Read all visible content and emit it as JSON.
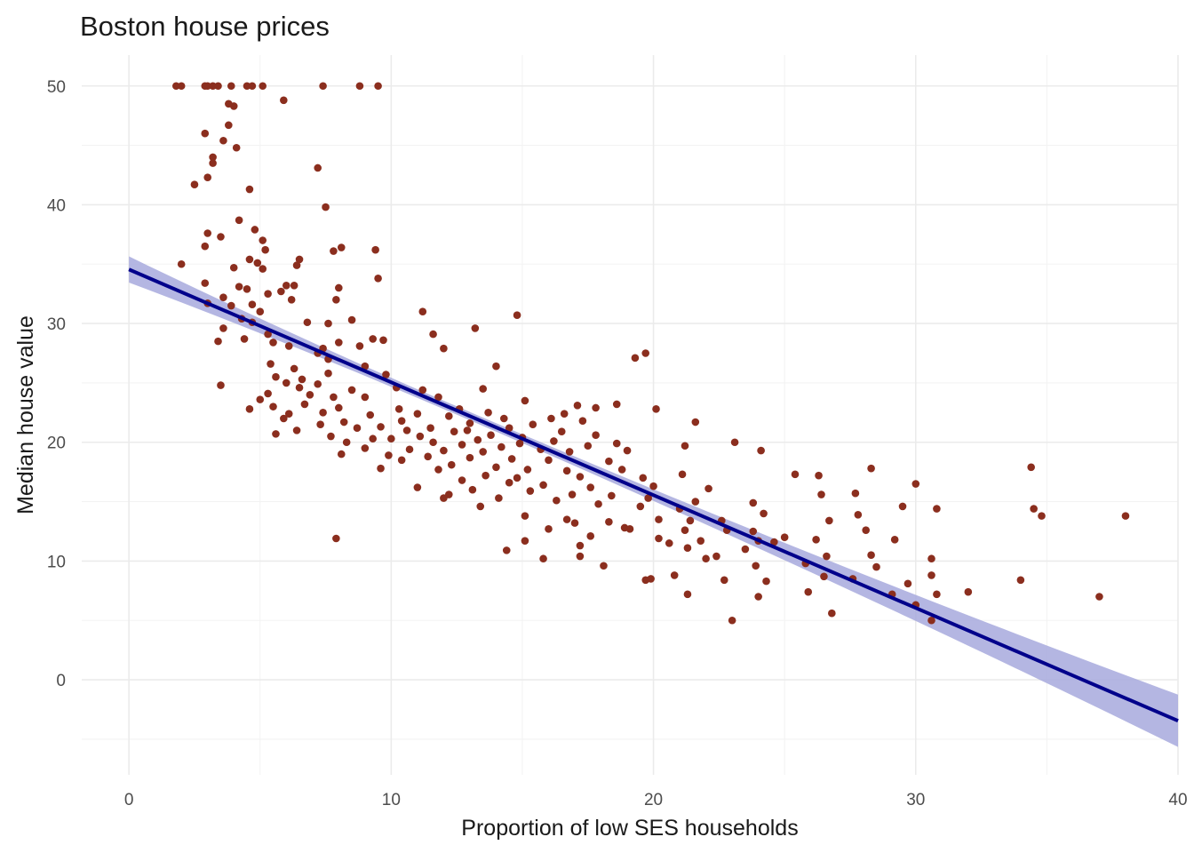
{
  "chart_data": {
    "type": "scatter",
    "title": "Boston house prices",
    "xlabel": "Proportion of low SES households",
    "ylabel": "Median house value",
    "xlim": [
      -1.8,
      40.0
    ],
    "ylim": [
      -8.0,
      52.6
    ],
    "x_ticks": [
      0,
      10,
      20,
      30,
      40
    ],
    "y_ticks": [
      0,
      10,
      20,
      30,
      40,
      50
    ],
    "grid": true,
    "legend": "none",
    "colors": {
      "points": "#8b2e1e",
      "fit_line": "#00008b",
      "ci_band": "#a7a9dd"
    },
    "fit": {
      "method": "linear",
      "intercept": 34.55,
      "slope": -0.95,
      "x_range": [
        0.0,
        40.0
      ],
      "ci_halfwidth_ends": 1.1,
      "ci_halfwidth_mid": 0.35
    },
    "points": [
      [
        1.8,
        50
      ],
      [
        2.0,
        50
      ],
      [
        2.9,
        50
      ],
      [
        3.0,
        50
      ],
      [
        3.2,
        50
      ],
      [
        3.4,
        50
      ],
      [
        3.9,
        50
      ],
      [
        4.5,
        50
      ],
      [
        4.7,
        50
      ],
      [
        5.1,
        50
      ],
      [
        7.4,
        50
      ],
      [
        8.8,
        50
      ],
      [
        9.5,
        50
      ],
      [
        5.9,
        48.8
      ],
      [
        4.0,
        48.3
      ],
      [
        3.8,
        48.5
      ],
      [
        3.8,
        46.7
      ],
      [
        2.9,
        46.0
      ],
      [
        3.6,
        45.4
      ],
      [
        4.1,
        44.8
      ],
      [
        3.2,
        44.0
      ],
      [
        3.2,
        43.5
      ],
      [
        7.2,
        43.1
      ],
      [
        3.0,
        42.3
      ],
      [
        2.5,
        41.7
      ],
      [
        4.6,
        41.3
      ],
      [
        7.5,
        39.8
      ],
      [
        4.2,
        38.7
      ],
      [
        4.8,
        37.9
      ],
      [
        3.0,
        37.6
      ],
      [
        3.5,
        37.3
      ],
      [
        5.1,
        37.0
      ],
      [
        2.9,
        36.5
      ],
      [
        8.1,
        36.4
      ],
      [
        7.8,
        36.1
      ],
      [
        9.4,
        36.2
      ],
      [
        5.2,
        36.2
      ],
      [
        6.5,
        35.4
      ],
      [
        4.6,
        35.4
      ],
      [
        4.9,
        35.1
      ],
      [
        2.0,
        35.0
      ],
      [
        6.4,
        34.9
      ],
      [
        4.0,
        34.7
      ],
      [
        5.1,
        34.6
      ],
      [
        9.5,
        33.8
      ],
      [
        2.9,
        33.4
      ],
      [
        4.2,
        33.1
      ],
      [
        6.0,
        33.2
      ],
      [
        6.3,
        33.2
      ],
      [
        8.0,
        33.0
      ],
      [
        4.5,
        32.9
      ],
      [
        5.8,
        32.7
      ],
      [
        5.3,
        32.5
      ],
      [
        3.6,
        32.2
      ],
      [
        6.2,
        32.0
      ],
      [
        7.9,
        32.0
      ],
      [
        3.0,
        31.7
      ],
      [
        4.7,
        31.6
      ],
      [
        5.0,
        31.0
      ],
      [
        3.9,
        31.5
      ],
      [
        11.2,
        31.0
      ],
      [
        14.8,
        30.7
      ],
      [
        4.3,
        30.4
      ],
      [
        8.5,
        30.3
      ],
      [
        4.7,
        30.1
      ],
      [
        6.8,
        30.1
      ],
      [
        7.6,
        30.0
      ],
      [
        13.2,
        29.6
      ],
      [
        3.6,
        29.6
      ],
      [
        5.3,
        29.1
      ],
      [
        9.3,
        28.7
      ],
      [
        4.4,
        28.7
      ],
      [
        5.5,
        28.4
      ],
      [
        3.4,
        28.5
      ],
      [
        9.7,
        28.6
      ],
      [
        8.0,
        28.4
      ],
      [
        6.1,
        28.1
      ],
      [
        7.4,
        27.9
      ],
      [
        8.8,
        28.1
      ],
      [
        12.0,
        27.9
      ],
      [
        11.6,
        29.1
      ],
      [
        7.2,
        27.5
      ],
      [
        19.7,
        27.5
      ],
      [
        19.3,
        27.1
      ],
      [
        7.6,
        27.0
      ],
      [
        5.4,
        26.6
      ],
      [
        9.0,
        26.4
      ],
      [
        14.0,
        26.4
      ],
      [
        6.3,
        26.2
      ],
      [
        7.6,
        25.8
      ],
      [
        5.6,
        25.5
      ],
      [
        9.8,
        25.7
      ],
      [
        6.6,
        25.3
      ],
      [
        6.0,
        25.0
      ],
      [
        7.2,
        24.9
      ],
      [
        6.5,
        24.6
      ],
      [
        3.5,
        24.8
      ],
      [
        10.2,
        24.6
      ],
      [
        8.5,
        24.4
      ],
      [
        11.2,
        24.4
      ],
      [
        13.5,
        24.5
      ],
      [
        5.3,
        24.1
      ],
      [
        6.9,
        24.0
      ],
      [
        7.8,
        23.8
      ],
      [
        5.0,
        23.6
      ],
      [
        9.0,
        23.8
      ],
      [
        11.8,
        23.8
      ],
      [
        15.1,
        23.5
      ],
      [
        17.1,
        23.1
      ],
      [
        17.8,
        22.9
      ],
      [
        18.6,
        23.2
      ],
      [
        20.1,
        22.8
      ],
      [
        21.6,
        21.7
      ],
      [
        5.5,
        23.0
      ],
      [
        6.7,
        23.2
      ],
      [
        8.0,
        22.9
      ],
      [
        10.3,
        22.8
      ],
      [
        12.6,
        22.8
      ],
      [
        13.7,
        22.5
      ],
      [
        16.6,
        22.4
      ],
      [
        4.6,
        22.8
      ],
      [
        6.1,
        22.4
      ],
      [
        7.4,
        22.5
      ],
      [
        9.2,
        22.3
      ],
      [
        11.0,
        22.4
      ],
      [
        12.2,
        22.2
      ],
      [
        14.3,
        22.0
      ],
      [
        16.1,
        22.0
      ],
      [
        5.9,
        22.0
      ],
      [
        8.2,
        21.7
      ],
      [
        10.4,
        21.8
      ],
      [
        13.0,
        21.6
      ],
      [
        15.4,
        21.5
      ],
      [
        17.3,
        21.8
      ],
      [
        7.3,
        21.5
      ],
      [
        9.6,
        21.3
      ],
      [
        11.5,
        21.2
      ],
      [
        12.9,
        21.0
      ],
      [
        14.5,
        21.2
      ],
      [
        16.5,
        20.9
      ],
      [
        6.4,
        21.0
      ],
      [
        8.7,
        21.2
      ],
      [
        10.6,
        21.0
      ],
      [
        12.4,
        20.9
      ],
      [
        13.8,
        20.6
      ],
      [
        15.0,
        20.4
      ],
      [
        17.8,
        20.6
      ],
      [
        7.7,
        20.5
      ],
      [
        9.3,
        20.3
      ],
      [
        11.1,
        20.5
      ],
      [
        13.3,
        20.2
      ],
      [
        14.9,
        19.9
      ],
      [
        16.2,
        20.1
      ],
      [
        18.6,
        19.9
      ],
      [
        5.6,
        20.7
      ],
      [
        8.3,
        20.0
      ],
      [
        10.0,
        20.3
      ],
      [
        11.6,
        20.0
      ],
      [
        12.7,
        19.8
      ],
      [
        14.2,
        19.6
      ],
      [
        15.7,
        19.4
      ],
      [
        17.5,
        19.7
      ],
      [
        9.0,
        19.5
      ],
      [
        10.7,
        19.4
      ],
      [
        12.0,
        19.3
      ],
      [
        13.5,
        19.2
      ],
      [
        16.8,
        19.2
      ],
      [
        19.0,
        19.3
      ],
      [
        21.2,
        19.7
      ],
      [
        24.1,
        19.3
      ],
      [
        23.1,
        20.0
      ],
      [
        8.1,
        19.0
      ],
      [
        9.9,
        18.9
      ],
      [
        11.4,
        18.8
      ],
      [
        13.0,
        18.7
      ],
      [
        14.6,
        18.6
      ],
      [
        16.0,
        18.5
      ],
      [
        18.3,
        18.4
      ],
      [
        10.4,
        18.5
      ],
      [
        12.3,
        18.1
      ],
      [
        14.0,
        17.9
      ],
      [
        15.2,
        17.7
      ],
      [
        16.7,
        17.6
      ],
      [
        18.8,
        17.7
      ],
      [
        21.1,
        17.3
      ],
      [
        9.6,
        17.8
      ],
      [
        11.8,
        17.7
      ],
      [
        13.6,
        17.2
      ],
      [
        14.8,
        17.0
      ],
      [
        17.2,
        17.1
      ],
      [
        19.6,
        17.0
      ],
      [
        25.4,
        17.3
      ],
      [
        26.3,
        17.2
      ],
      [
        28.3,
        17.8
      ],
      [
        34.4,
        17.9
      ],
      [
        12.7,
        16.8
      ],
      [
        14.5,
        16.6
      ],
      [
        15.8,
        16.4
      ],
      [
        17.6,
        16.2
      ],
      [
        20.0,
        16.3
      ],
      [
        22.1,
        16.1
      ],
      [
        26.4,
        15.6
      ],
      [
        27.7,
        15.7
      ],
      [
        30.0,
        16.5
      ],
      [
        11.0,
        16.2
      ],
      [
        13.1,
        16.0
      ],
      [
        15.3,
        15.9
      ],
      [
        16.9,
        15.6
      ],
      [
        18.4,
        15.5
      ],
      [
        19.8,
        15.3
      ],
      [
        21.6,
        15.0
      ],
      [
        23.8,
        14.9
      ],
      [
        12.2,
        15.6
      ],
      [
        14.1,
        15.3
      ],
      [
        16.3,
        15.1
      ],
      [
        17.9,
        14.8
      ],
      [
        19.5,
        14.6
      ],
      [
        21.0,
        14.4
      ],
      [
        29.5,
        14.6
      ],
      [
        30.8,
        14.4
      ],
      [
        34.5,
        14.4
      ],
      [
        34.8,
        13.8
      ],
      [
        38.0,
        13.8
      ],
      [
        13.4,
        14.6
      ],
      [
        15.1,
        13.8
      ],
      [
        16.7,
        13.5
      ],
      [
        18.3,
        13.3
      ],
      [
        20.2,
        13.5
      ],
      [
        21.4,
        13.4
      ],
      [
        22.6,
        13.4
      ],
      [
        24.2,
        14.0
      ],
      [
        26.7,
        13.4
      ],
      [
        27.8,
        13.9
      ],
      [
        12.0,
        15.3
      ],
      [
        17.0,
        13.2
      ],
      [
        18.9,
        12.8
      ],
      [
        21.2,
        12.6
      ],
      [
        22.8,
        12.6
      ],
      [
        23.8,
        12.5
      ],
      [
        25.0,
        12.0
      ],
      [
        16.0,
        12.7
      ],
      [
        17.6,
        12.1
      ],
      [
        19.1,
        12.7
      ],
      [
        20.2,
        11.9
      ],
      [
        21.8,
        11.7
      ],
      [
        24.0,
        11.7
      ],
      [
        28.1,
        12.6
      ],
      [
        29.2,
        11.8
      ],
      [
        7.9,
        11.9
      ],
      [
        15.1,
        11.7
      ],
      [
        17.2,
        11.3
      ],
      [
        20.6,
        11.5
      ],
      [
        21.3,
        11.1
      ],
      [
        23.5,
        11.0
      ],
      [
        24.6,
        11.6
      ],
      [
        14.4,
        10.9
      ],
      [
        15.8,
        10.2
      ],
      [
        17.2,
        10.4
      ],
      [
        22.0,
        10.2
      ],
      [
        22.4,
        10.4
      ],
      [
        26.6,
        10.4
      ],
      [
        28.3,
        10.5
      ],
      [
        30.6,
        10.2
      ],
      [
        23.9,
        9.6
      ],
      [
        25.8,
        9.8
      ],
      [
        18.1,
        9.6
      ],
      [
        20.8,
        8.8
      ],
      [
        25.9,
        7.4
      ],
      [
        26.5,
        8.7
      ],
      [
        27.6,
        8.5
      ],
      [
        24.3,
        8.3
      ],
      [
        29.1,
        7.2
      ],
      [
        29.7,
        8.1
      ],
      [
        30.6,
        8.8
      ],
      [
        32.0,
        7.4
      ],
      [
        34.0,
        8.4
      ],
      [
        37.0,
        7.0
      ],
      [
        21.3,
        7.2
      ],
      [
        19.7,
        8.4
      ],
      [
        19.9,
        8.5
      ],
      [
        22.7,
        8.4
      ],
      [
        24.0,
        7.0
      ],
      [
        26.8,
        5.6
      ],
      [
        23.0,
        5.0
      ],
      [
        30.6,
        5.0
      ],
      [
        30.0,
        6.3
      ],
      [
        30.8,
        7.2
      ],
      [
        28.5,
        9.5
      ],
      [
        26.2,
        11.8
      ]
    ]
  }
}
